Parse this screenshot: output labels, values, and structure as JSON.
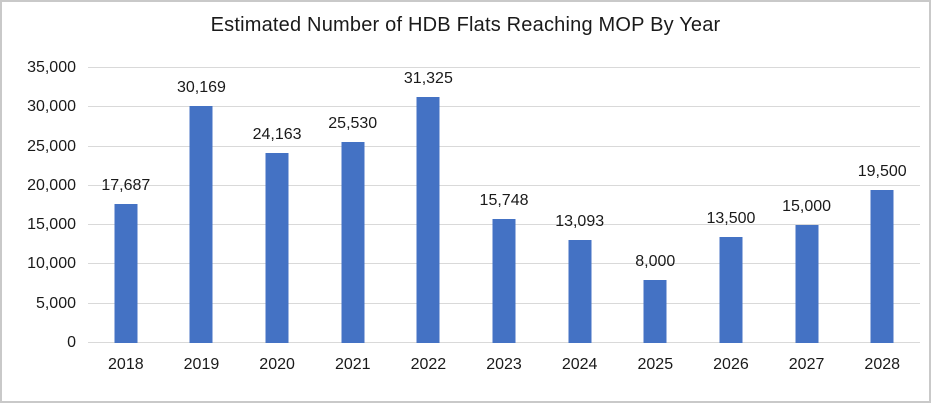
{
  "chart_data": {
    "type": "bar",
    "title": "Estimated Number of HDB Flats Reaching MOP By Year",
    "categories": [
      "2018",
      "2019",
      "2020",
      "2021",
      "2022",
      "2023",
      "2024",
      "2025",
      "2026",
      "2027",
      "2028"
    ],
    "values": [
      17687,
      30169,
      24163,
      25530,
      31325,
      15748,
      13093,
      8000,
      13500,
      15000,
      19500
    ],
    "data_labels": [
      "17,687",
      "30,169",
      "24,163",
      "25,530",
      "31,325",
      "15,748",
      "13,093",
      "8,000",
      "13,500",
      "15,000",
      "19,500"
    ],
    "xlabel": "",
    "ylabel": "",
    "ylim": [
      0,
      35000
    ],
    "ytick_interval": 5000,
    "ytick_labels": [
      "0",
      "5,000",
      "10,000",
      "15,000",
      "20,000",
      "25,000",
      "30,000",
      "35,000"
    ],
    "grid": true,
    "legend": "none",
    "colors": {
      "bar": "#4472c4",
      "gridline": "#d9d9d9",
      "text": "#1a1a1a",
      "background": "#ffffff",
      "border": "#c9c9c9"
    }
  }
}
